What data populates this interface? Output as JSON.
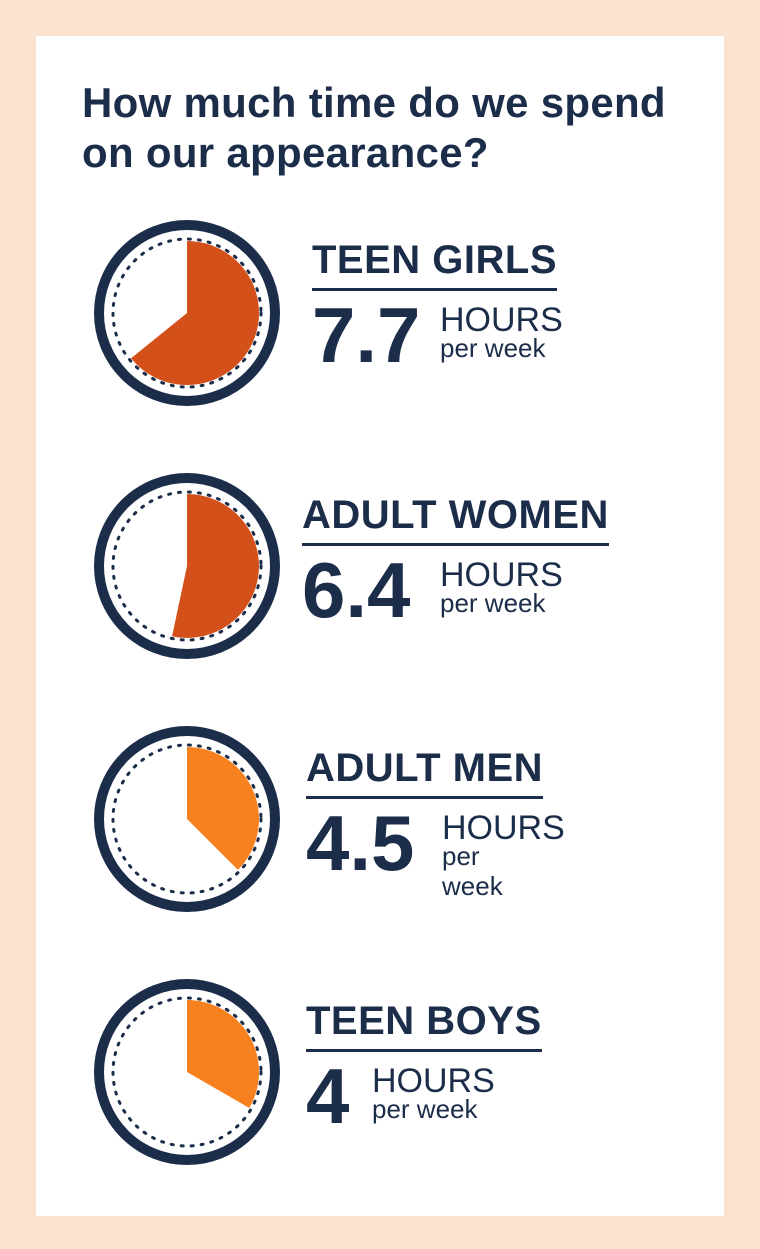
{
  "title": "How much time do we spend on our appearance?",
  "colors": {
    "navy": "#1c2d4a",
    "dark_orange": "#d4501a",
    "light_orange": "#f7811f",
    "background": "#fbe3cf"
  },
  "chart_data": {
    "type": "pie",
    "title": "How much time do we spend on our appearance?",
    "categories": [
      "TEEN GIRLS",
      "ADULT WOMEN",
      "ADULT MEN",
      "TEEN BOYS"
    ],
    "values": [
      7.7,
      6.4,
      4.5,
      4
    ],
    "unit": "HOURS",
    "period": "per week",
    "items": [
      {
        "label": "TEEN GIRLS",
        "value": "7.7",
        "hours": 7.7,
        "unit": "HOURS",
        "period": "per week",
        "color": "#d4501a"
      },
      {
        "label": "ADULT WOMEN",
        "value": "6.4",
        "hours": 6.4,
        "unit": "HOURS",
        "period": "per week",
        "color": "#d4501a"
      },
      {
        "label": "ADULT MEN",
        "value": "4.5",
        "hours": 4.5,
        "unit": "HOURS",
        "period": "per week",
        "color": "#f7811f"
      },
      {
        "label": "TEEN BOYS",
        "value": "4",
        "hours": 4,
        "unit": "HOURS",
        "period": "per week",
        "color": "#f7811f"
      }
    ]
  }
}
